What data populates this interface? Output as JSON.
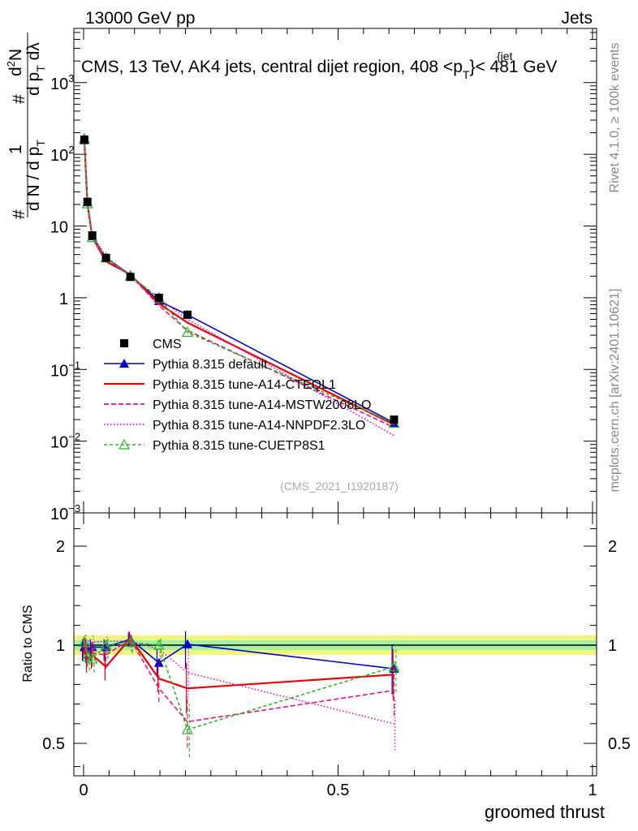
{
  "header": {
    "energy": "13000 GeV pp",
    "category": "Jets",
    "title_main": "CMS, 13 TeV, AK4 jets, central dijet region, 408 <p",
    "title_sub": "T",
    "title_sup": "{jet",
    "title_end": "}< 481 GeV",
    "side_top": "Rivet 4.1.0, ≥ 100k events",
    "side_bottom": "mcplots.cern.ch [arXiv:2401.10621]",
    "watermark": "(CMS_2021_I1920187)"
  },
  "axes": {
    "ylabel_top_1": "1",
    "ylabel_top_2": "d N / d p",
    "ylabel_top_2_sub": "T",
    "ylabel_top_3": "d",
    "ylabel_top_3b": "2",
    "ylabel_top_3c": "N",
    "ylabel_top_4": "d p",
    "ylabel_top_4_sub": "T",
    "ylabel_top_4b": " dλ",
    "ylabel_hash": "#",
    "ylabel_bottom": "Ratio to CMS",
    "xlabel": "groomed thrust",
    "x_ticks": [
      "0",
      "0.5",
      "1"
    ],
    "y_ticks_top": [
      {
        "label": "10",
        "exp": "−3",
        "value": 0.001
      },
      {
        "label": "10",
        "exp": "−2",
        "value": 0.01
      },
      {
        "label": "10",
        "exp": "−1",
        "value": 0.1
      },
      {
        "label": "1",
        "exp": "",
        "value": 1
      },
      {
        "label": "10",
        "exp": "",
        "value": 10
      },
      {
        "label": "10",
        "exp": "2",
        "value": 100
      },
      {
        "label": "10",
        "exp": "3",
        "value": 1000
      }
    ],
    "y_ticks_ratio": [
      "0.5",
      "1",
      "2"
    ]
  },
  "chart_data": {
    "type": "line",
    "title": "CMS, 13 TeV, AK4 jets, central dijet region, 408 < pT^{jet} < 481 GeV",
    "xlabel": "groomed thrust",
    "ylabel": "1/(dN/dpT) d²N/(dpT dλ)",
    "xlim": [
      -0.02,
      1.02
    ],
    "ylim": [
      0.001,
      5000
    ],
    "yscale": "log",
    "ratio_ylim": [
      0.36,
      2.38
    ],
    "x": [
      0.0015,
      0.0075,
      0.017,
      0.044,
      0.092,
      0.148,
      0.204,
      0.61
    ],
    "series": [
      {
        "name": "CMS",
        "color": "#000000",
        "marker": "square",
        "dash": "none",
        "values": [
          160,
          21.8,
          7.4,
          3.6,
          1.95,
          1.0,
          0.58,
          0.02
        ],
        "ratio": [
          1,
          1,
          1,
          1,
          1,
          1,
          1,
          1
        ]
      },
      {
        "name": "Pythia 8.315 default",
        "color": "#0000cc",
        "marker": "triangle",
        "dash": "none",
        "values": [
          158,
          21.5,
          7.2,
          3.6,
          2.08,
          0.9,
          0.58,
          0.018
        ],
        "ratio": [
          0.99,
          0.98,
          0.99,
          0.99,
          1.06,
          0.91,
          1.01,
          0.88
        ]
      },
      {
        "name": "Pythia 8.315 tune-A14-CTEQL1",
        "color": "#ee0000",
        "marker": "none",
        "dash": "none",
        "values": [
          160,
          20.3,
          7.0,
          3.2,
          2.1,
          0.83,
          0.45,
          0.017
        ],
        "ratio": [
          1.0,
          0.93,
          0.95,
          0.89,
          1.07,
          0.83,
          0.78,
          0.85
        ]
      },
      {
        "name": "Pythia 8.315 tune-A14-MSTW2008LO",
        "color": "#ee1177",
        "marker": "none",
        "dash": "6,3",
        "values": [
          163,
          21.0,
          7.1,
          3.4,
          2.06,
          0.78,
          0.35,
          0.0155
        ],
        "ratio": [
          1.02,
          0.96,
          0.96,
          0.95,
          1.06,
          0.78,
          0.61,
          0.77
        ]
      },
      {
        "name": "Pythia 8.315 tune-A14-NNPDF2.3LO",
        "color": "#ee00cc",
        "marker": "none",
        "dash": "1.5,2.5",
        "values": [
          168,
          21.6,
          7.6,
          3.75,
          2.02,
          0.98,
          0.5,
          0.012
        ],
        "ratio": [
          1.05,
          0.99,
          1.03,
          1.04,
          1.04,
          0.98,
          0.86,
          0.6
        ]
      },
      {
        "name": "Pythia 8.315 tune-CUETP8S1",
        "color": "#22bb22",
        "marker": "triangle-open",
        "dash": "4,3",
        "values": [
          165,
          20.5,
          6.9,
          3.6,
          2.0,
          1.0,
          0.33,
          0.0178
        ],
        "ratio": [
          1.03,
          0.94,
          0.93,
          1.0,
          1.03,
          1.0,
          0.57,
          0.89
        ]
      }
    ]
  }
}
